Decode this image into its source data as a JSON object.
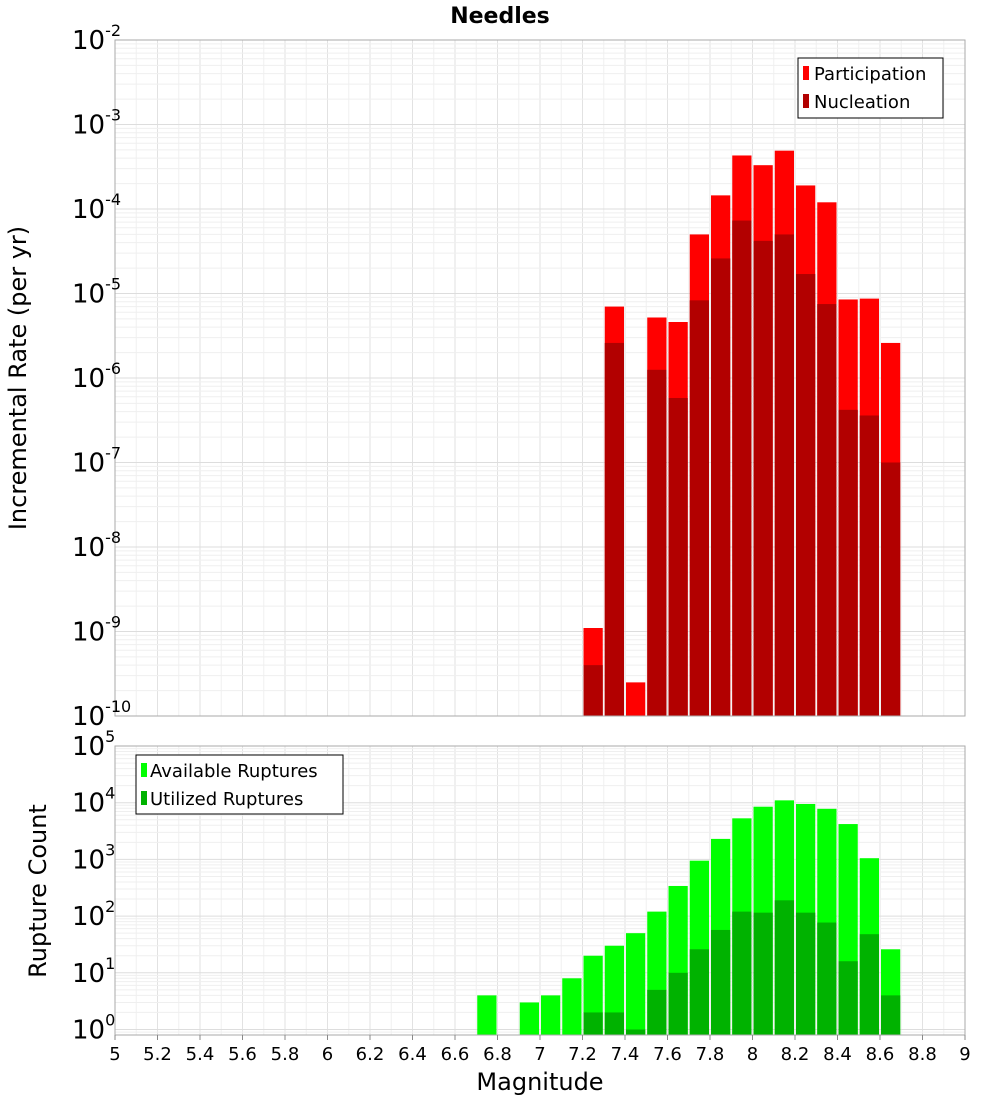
{
  "chart_data": [
    {
      "type": "bar",
      "title": "Needles",
      "ylabel": "Incremental Rate (per yr)",
      "yscale": "log",
      "ylim": [
        1e-10,
        0.01
      ],
      "xlim": [
        5,
        9
      ],
      "bar_width": 0.1,
      "grid": true,
      "legend_position": "top-right",
      "overlay": true,
      "series": [
        {
          "name": "Participation",
          "color": "#ff0000",
          "x": [
            7.25,
            7.35,
            7.45,
            7.55,
            7.65,
            7.75,
            7.85,
            7.95,
            8.05,
            8.15,
            8.25,
            8.35,
            8.45,
            8.55,
            8.65
          ],
          "values": [
            1.1e-09,
            7e-06,
            2.5e-10,
            5.2e-06,
            4.6e-06,
            5e-05,
            0.000145,
            0.00043,
            0.00033,
            0.00049,
            0.00019,
            0.00012,
            8.5e-06,
            8.7e-06,
            2.6e-06
          ]
        },
        {
          "name": "Nucleation",
          "color": "#b20000",
          "x": [
            7.25,
            7.35,
            7.55,
            7.65,
            7.75,
            7.85,
            7.95,
            8.05,
            8.15,
            8.25,
            8.35,
            8.45,
            8.55,
            8.65
          ],
          "values": [
            4e-10,
            2.6e-06,
            1.25e-06,
            5.8e-07,
            8.3e-06,
            2.6e-05,
            7.3e-05,
            4.2e-05,
            5e-05,
            1.7e-05,
            7.5e-06,
            4.2e-07,
            3.6e-07,
            1e-07
          ]
        }
      ]
    },
    {
      "type": "bar",
      "xlabel": "Magnitude",
      "ylabel": "Rupture Count",
      "yscale": "log",
      "ylim": [
        0.8,
        100000.0
      ],
      "xlim": [
        5,
        9
      ],
      "xticks": [
        "5",
        "5.2",
        "5.4",
        "5.6",
        "5.8",
        "6",
        "6.2",
        "6.4",
        "6.6",
        "6.8",
        "7",
        "7.2",
        "7.4",
        "7.6",
        "7.8",
        "8",
        "8.2",
        "8.4",
        "8.6",
        "8.8",
        "9"
      ],
      "bar_width": 0.1,
      "grid": true,
      "legend_position": "top-left",
      "overlay": true,
      "series": [
        {
          "name": "Available Ruptures",
          "color": "#00ff00",
          "x": [
            6.75,
            6.95,
            7.05,
            7.15,
            7.25,
            7.35,
            7.45,
            7.55,
            7.65,
            7.75,
            7.85,
            7.95,
            8.05,
            8.15,
            8.25,
            8.35,
            8.45,
            8.55,
            8.65
          ],
          "values": [
            4,
            3,
            4,
            8,
            20,
            30,
            50,
            120,
            340,
            950,
            2300,
            5300,
            8500,
            11000,
            9500,
            7800,
            4200,
            1050,
            26
          ]
        },
        {
          "name": "Utilized Ruptures",
          "color": "#00b200",
          "x": [
            7.25,
            7.35,
            7.45,
            7.55,
            7.65,
            7.75,
            7.85,
            7.95,
            8.05,
            8.15,
            8.25,
            8.35,
            8.45,
            8.55,
            8.65
          ],
          "values": [
            2,
            2,
            1,
            5,
            10,
            26,
            57,
            120,
            115,
            190,
            115,
            77,
            16,
            48,
            4
          ]
        }
      ]
    }
  ]
}
